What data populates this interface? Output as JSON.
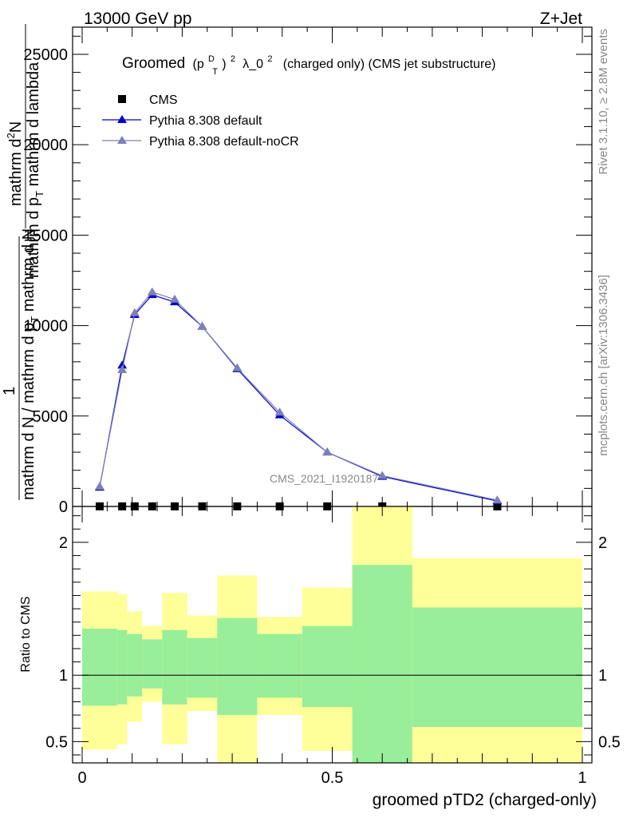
{
  "header": {
    "left": "13000 GeV pp",
    "right": "Z+Jet"
  },
  "side_text": {
    "rivet": "Rivet 3.1.10, ≥ 2.8M events",
    "mcplots": "mcplots.cern.ch [arXiv:1306.3436]"
  },
  "analysis_label": "CMS_2021_I1920187",
  "chart_data": [
    {
      "type": "line",
      "title": {
        "prefix": "Groomed",
        "math": "(p",
        "sup_d": "D",
        "sub_t": "T",
        "close": ")",
        "pow2": "2",
        "lambda": "λ_0",
        "lambda_pow": "2",
        "suffix": "(charged only) (CMS jet substructure)"
      },
      "ylabel": {
        "top_num": "mathrm d",
        "top_sup": "2",
        "top_n": "N",
        "top_den": "mathrm d p",
        "top_den_sub": "T",
        "top_den_rest": " mathrm d lambda",
        "one": "1",
        "bottom_den": "mathrm d N / mathrm d p",
        "bottom_den_sub": "T",
        "bottom_den_rest": " mathrm d N"
      },
      "xlim": [
        0,
        1
      ],
      "ylim": [
        0,
        26500
      ],
      "yticks": [
        0,
        5000,
        10000,
        15000,
        20000,
        25000
      ],
      "ytick_labels": [
        "0",
        "5000",
        "10000",
        "15000",
        "20000",
        "25000"
      ],
      "legend_position": "top-left",
      "legend": [
        {
          "name": "CMS",
          "color": "#000000",
          "marker": "square"
        },
        {
          "name": "Pythia 8.308 default",
          "color": "#0000cc",
          "marker": "triangle"
        },
        {
          "name": "Pythia 8.308 default-noCR",
          "color": "#7f7fb8",
          "marker": "triangle"
        }
      ],
      "bin_edges": [
        0,
        0.07,
        0.09,
        0.12,
        0.16,
        0.21,
        0.27,
        0.35,
        0.44,
        0.54,
        0.66,
        1.0
      ],
      "series": [
        {
          "name": "CMS",
          "x": [
            0.035,
            0.08,
            0.105,
            0.14,
            0.185,
            0.24,
            0.31,
            0.395,
            0.49,
            0.6,
            0.83
          ],
          "y": [
            5,
            5,
            5,
            5,
            5,
            5,
            5,
            5,
            5,
            5,
            5
          ]
        },
        {
          "name": "Pythia 8.308 default",
          "x": [
            0.035,
            0.08,
            0.105,
            0.14,
            0.185,
            0.24,
            0.31,
            0.395,
            0.49,
            0.6,
            0.83
          ],
          "y": [
            1050,
            7800,
            10600,
            11700,
            11300,
            9950,
            7600,
            5050,
            3000,
            1650,
            300
          ]
        },
        {
          "name": "Pythia 8.308 default-noCR",
          "x": [
            0.035,
            0.08,
            0.105,
            0.14,
            0.185,
            0.24,
            0.31,
            0.395,
            0.49,
            0.6,
            0.83
          ],
          "y": [
            1100,
            7550,
            10700,
            11850,
            11450,
            9950,
            7650,
            5200,
            3000,
            1700,
            350
          ]
        }
      ]
    },
    {
      "type": "area",
      "ylabel": "Ratio to CMS",
      "xlabel": "groomed pTD2 (charged-only)",
      "xlim": [
        0,
        1
      ],
      "ylim": [
        0.34,
        2.27
      ],
      "xticks": [
        0,
        0.5,
        1
      ],
      "xtick_labels": [
        "0",
        "0.5",
        "1"
      ],
      "yticks": [
        0.5,
        1,
        2
      ],
      "ytick_labels": [
        "0.5",
        "1",
        "2"
      ],
      "reference_line": 1,
      "bands": {
        "inner_color": "#99ee99",
        "outer_color": "#ffff99",
        "bin_edges": [
          0,
          0.07,
          0.09,
          0.12,
          0.16,
          0.21,
          0.27,
          0.35,
          0.44,
          0.54,
          0.66,
          1.0
        ],
        "inner_low": [
          0.77,
          0.78,
          0.84,
          0.9,
          0.78,
          0.83,
          0.7,
          0.83,
          0.76,
          0.34,
          0.61
        ],
        "inner_high": [
          1.35,
          1.34,
          1.31,
          1.27,
          1.34,
          1.28,
          1.43,
          1.31,
          1.37,
          1.83,
          1.51
        ],
        "outer_low": [
          0.44,
          0.48,
          0.65,
          0.8,
          0.48,
          0.73,
          0.34,
          0.7,
          0.43,
          0.34,
          0.34
        ],
        "outer_high": [
          1.63,
          1.61,
          1.48,
          1.37,
          1.62,
          1.45,
          1.75,
          1.44,
          1.66,
          2.27,
          1.88
        ]
      }
    }
  ]
}
